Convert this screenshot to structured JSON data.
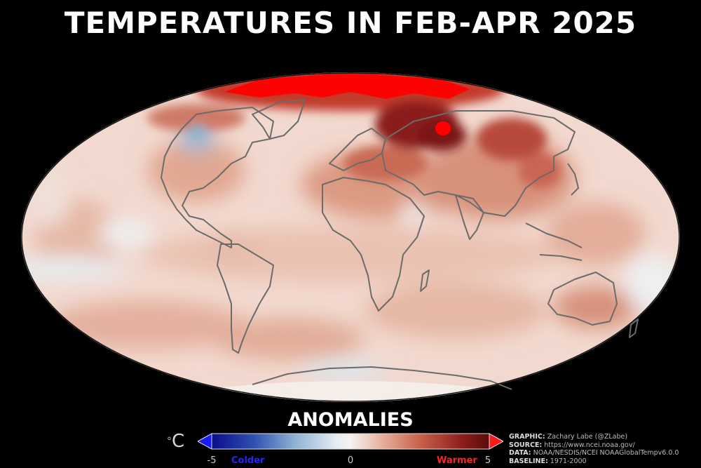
{
  "title": "TEMPERATURES IN FEB-APR 2025",
  "colorbar": {
    "title": "ANOMALIES",
    "unit_symbol": "°",
    "unit_letter": "C",
    "min_label": "-5",
    "mid_label": "0",
    "max_label": "5",
    "cold_label": "Colder",
    "warm_label": "Warmer",
    "cold_color": "#1a1aff",
    "warm_color": "#ff1a1a",
    "range": [
      -5,
      5
    ]
  },
  "credits": [
    {
      "key": "GRAPHIC:",
      "value": "Zachary Labe (@ZLabe)"
    },
    {
      "key": "SOURCE:",
      "value": "https://www.ncei.noaa.gov/"
    },
    {
      "key": "DATA:",
      "value": "NOAA/NESDIS/NCEI NOAAGlobalTempv6.0.0"
    },
    {
      "key": "BASELINE:",
      "value": "1971-2000"
    }
  ],
  "map": {
    "projection": "Mollweide",
    "ocean_outline_color": "#6e6e6e",
    "background": "black"
  }
}
